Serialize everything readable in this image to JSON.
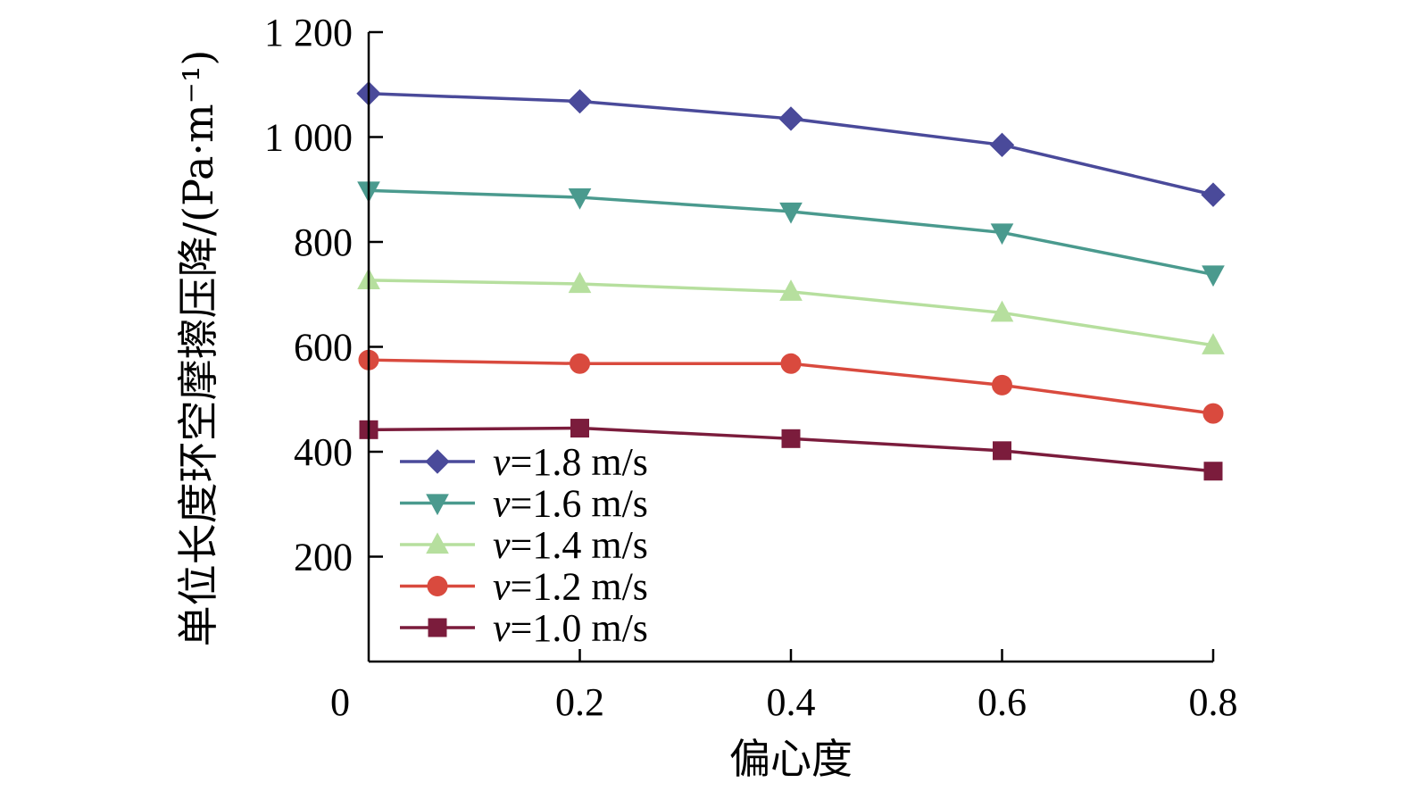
{
  "chart_data": {
    "type": "line",
    "title": "",
    "xlabel": "偏心度",
    "ylabel": "单位长度环空摩擦压降/(Pa·m⁻¹)",
    "x_ticks": [
      "0",
      "0.2",
      "0.4",
      "0.6",
      "0.8"
    ],
    "y_ticks": [
      "200",
      "400",
      "600",
      "800",
      "1 000",
      "1 200"
    ],
    "x": [
      0,
      0.2,
      0.4,
      0.6,
      0.8
    ],
    "xlim": [
      0,
      0.8
    ],
    "ylim": [
      0,
      1200
    ],
    "grid": false,
    "legend_position": "bottom-left",
    "series": [
      {
        "name": "1.8 m/s",
        "var": "v",
        "marker": "diamond",
        "color": "#4a4a9a",
        "values": [
          1083,
          1068,
          1035,
          985,
          890
        ]
      },
      {
        "name": "1.6 m/s",
        "var": "v",
        "marker": "triangle-down",
        "color": "#4a9a8e",
        "values": [
          898,
          885,
          858,
          818,
          738
        ]
      },
      {
        "name": "1.4 m/s",
        "var": "v",
        "marker": "triangle-up",
        "color": "#b6df9e",
        "values": [
          727,
          720,
          705,
          665,
          603
        ]
      },
      {
        "name": "1.2 m/s",
        "var": "v",
        "marker": "circle",
        "color": "#d94a3e",
        "values": [
          575,
          568,
          568,
          527,
          473
        ]
      },
      {
        "name": "1.0 m/s",
        "var": "v",
        "marker": "square",
        "color": "#7b1c3c",
        "values": [
          442,
          445,
          425,
          402,
          363
        ]
      }
    ]
  }
}
